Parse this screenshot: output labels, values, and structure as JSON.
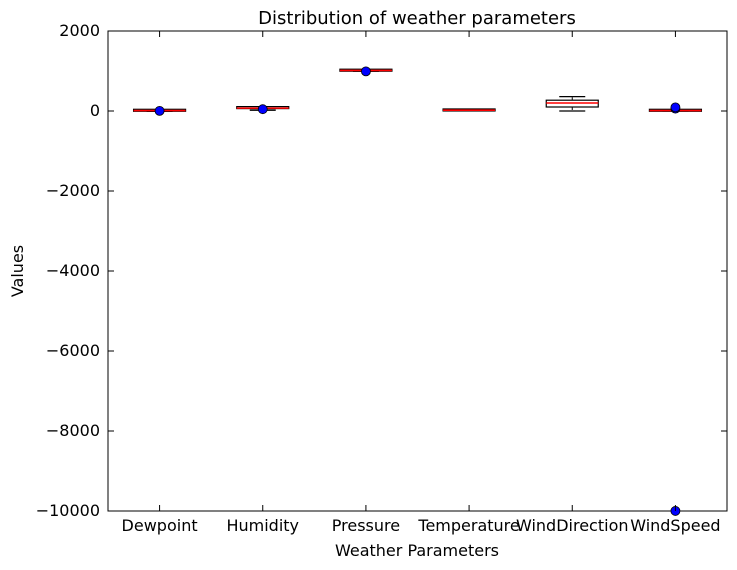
{
  "chart_data": {
    "type": "box",
    "title": "Distribution of weather parameters",
    "xlabel": "Weather Parameters",
    "ylabel": "Values",
    "ylim": [
      -10000,
      2000
    ],
    "yticks": [
      2000,
      0,
      -2000,
      -4000,
      -6000,
      -8000,
      -10000
    ],
    "ytick_labels": [
      "2000",
      "0",
      "−2000",
      "−4000",
      "−6000",
      "−8000",
      "−10000"
    ],
    "grid": false,
    "legend": "none",
    "categories": [
      "Dewpoint",
      "Humidity",
      "Pressure",
      "Temperature",
      "WindDirection",
      "WindSpeed"
    ],
    "series": [
      {
        "category": "Dewpoint",
        "whisker_low": -10,
        "q1": 2,
        "median": 10,
        "q3": 18,
        "whisker_high": 35,
        "outliers": [
          3
        ]
      },
      {
        "category": "Humidity",
        "whisker_low": 20,
        "q1": 60,
        "median": 72,
        "q3": 85,
        "whisker_high": 100,
        "outliers": [
          45
        ]
      },
      {
        "category": "Pressure",
        "whisker_low": 995,
        "q1": 1010,
        "median": 1015,
        "q3": 1020,
        "whisker_high": 1035,
        "outliers": [
          990
        ]
      },
      {
        "category": "Temperature",
        "whisker_low": 5,
        "q1": 15,
        "median": 20,
        "q3": 26,
        "whisker_high": 38,
        "outliers": []
      },
      {
        "category": "WindDirection",
        "whisker_low": 0,
        "q1": 100,
        "median": 200,
        "q3": 270,
        "whisker_high": 360,
        "outliers": []
      },
      {
        "category": "WindSpeed",
        "whisker_low": 0,
        "q1": 5,
        "median": 10,
        "q3": 18,
        "whisker_high": 35,
        "outliers": [
          60,
          90,
          -9999
        ]
      }
    ],
    "colors": {
      "box_edge": "#000000",
      "box_fill": "#ffffff",
      "median": "#ff0000",
      "whisker": "#000000",
      "flier": "#0000ff"
    }
  }
}
